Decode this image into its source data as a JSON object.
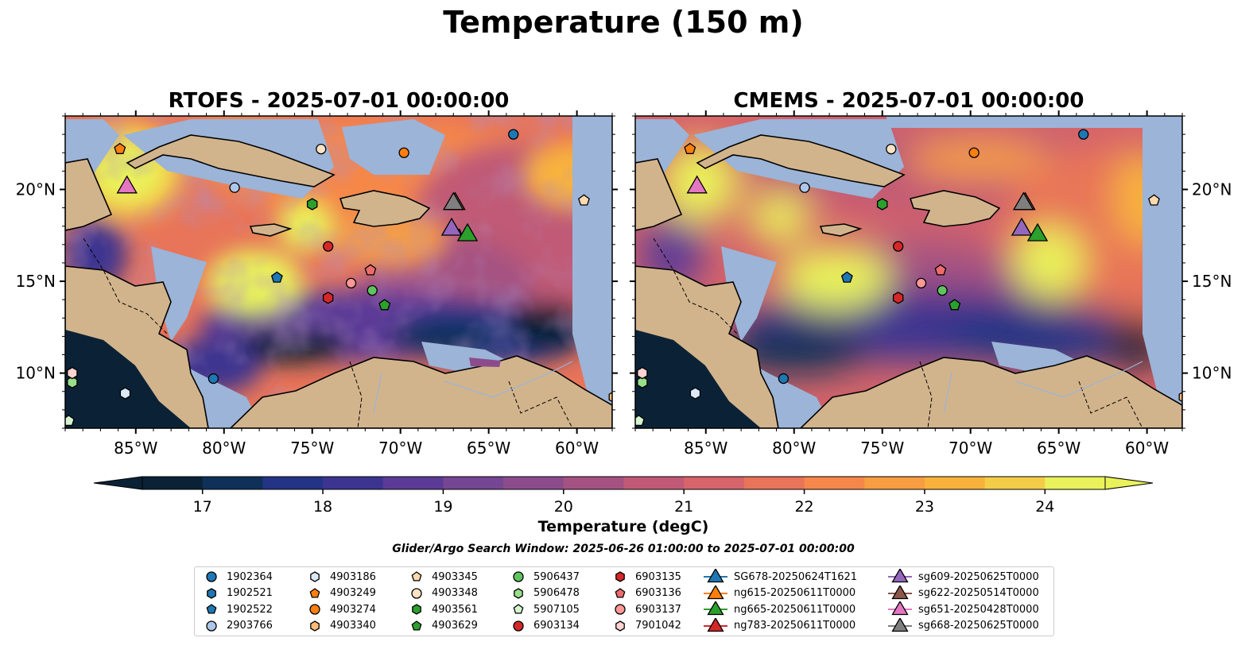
{
  "figure": {
    "title": "Temperature (150 m)",
    "colorbar_label": "Temperature (degC)",
    "search_window": "Glider/Argo Search Window: 2025-06-26 01:00:00 to 2025-07-01 00:00:00"
  },
  "panels": [
    {
      "title": "RTOFS - 2025-07-01 00:00:00"
    },
    {
      "title": "CMEMS - 2025-07-01 00:00:00"
    }
  ],
  "map": {
    "lon_range": [
      -89,
      -58
    ],
    "lat_range": [
      7,
      24
    ],
    "lon_ticks": [
      -85,
      -80,
      -75,
      -70,
      -65,
      -60
    ],
    "lat_ticks": [
      10,
      15,
      20
    ],
    "lon_tick_labels": [
      "85°W",
      "80°W",
      "75°W",
      "70°W",
      "65°W",
      "60°W"
    ],
    "lat_tick_labels": [
      "10°N",
      "15°N",
      "20°N"
    ],
    "land_color": "#d2b48c",
    "shallow_color": "#9bb4d8"
  },
  "colorbar": {
    "min": 16.5,
    "max": 24.5,
    "ticks": [
      "17",
      "18",
      "19",
      "20",
      "21",
      "22",
      "23",
      "24"
    ],
    "colors": [
      "#0b2236",
      "#0f3057",
      "#233485",
      "#3c3490",
      "#5b3b97",
      "#754693",
      "#8c4c8c",
      "#a55282",
      "#c05a76",
      "#d6646a",
      "#e87459",
      "#f5874a",
      "#f79d42",
      "#f8b23c",
      "#f4cd48",
      "#e9f25a"
    ]
  },
  "legend": {
    "items": [
      {
        "label": "1902364",
        "marker": "circle",
        "color": "#1f77b4"
      },
      {
        "label": "1902521",
        "marker": "hexagon",
        "color": "#1f77b4"
      },
      {
        "label": "1902522",
        "marker": "pentagon",
        "color": "#1f77b4"
      },
      {
        "label": "2903766",
        "marker": "circle",
        "color": "#aec7e8"
      },
      {
        "label": "4903186",
        "marker": "hexagon",
        "color": "#dbe8f5"
      },
      {
        "label": "4903249",
        "marker": "pentagon",
        "color": "#ff7f0e"
      },
      {
        "label": "4903274",
        "marker": "circle",
        "color": "#ff7f0e"
      },
      {
        "label": "4903340",
        "marker": "hexagon",
        "color": "#ffbb78"
      },
      {
        "label": "4903345",
        "marker": "pentagon",
        "color": "#ffd9b0"
      },
      {
        "label": "4903348",
        "marker": "circle",
        "color": "#ffe2c4"
      },
      {
        "label": "4903561",
        "marker": "hexagon",
        "color": "#2ca02c"
      },
      {
        "label": "4903629",
        "marker": "pentagon",
        "color": "#2ca02c"
      },
      {
        "label": "5906437",
        "marker": "circle",
        "color": "#5fc45f"
      },
      {
        "label": "5906478",
        "marker": "hexagon",
        "color": "#98df8a"
      },
      {
        "label": "5907105",
        "marker": "pentagon",
        "color": "#d5f5d0"
      },
      {
        "label": "6903134",
        "marker": "circle",
        "color": "#d62728"
      },
      {
        "label": "6903135",
        "marker": "hexagon",
        "color": "#d62728"
      },
      {
        "label": "6903136",
        "marker": "pentagon",
        "color": "#ee6b6b"
      },
      {
        "label": "6903137",
        "marker": "circle",
        "color": "#ff9896"
      },
      {
        "label": "7901042",
        "marker": "hexagon",
        "color": "#ffd4d2"
      },
      {
        "label": "SG678-20250624T1621",
        "marker": "triangle",
        "color": "#1f77b4"
      },
      {
        "label": "ng615-20250611T0000",
        "marker": "triangle",
        "color": "#ff7f0e"
      },
      {
        "label": "ng665-20250611T0000",
        "marker": "triangle",
        "color": "#2ca02c"
      },
      {
        "label": "ng783-20250611T0000",
        "marker": "triangle",
        "color": "#d62728"
      },
      {
        "label": "sg609-20250625T0000",
        "marker": "triangle",
        "color": "#9467bd"
      },
      {
        "label": "sg622-20250514T0000",
        "marker": "triangle",
        "color": "#8c564b"
      },
      {
        "label": "sg651-20250428T0000",
        "marker": "triangle",
        "color": "#e377c2"
      },
      {
        "label": "sg668-20250625T0000",
        "marker": "triangle",
        "color": "#7f7f7f"
      }
    ]
  },
  "argo_floats": [
    {
      "lon": -63.6,
      "lat": 23.0,
      "marker": "circle",
      "color": "#1f77b4"
    },
    {
      "lon": -79.4,
      "lat": 20.1,
      "marker": "circle",
      "color": "#aec7e8"
    },
    {
      "lon": -77.0,
      "lat": 15.2,
      "marker": "pentagon",
      "color": "#1f77b4"
    },
    {
      "lon": -80.6,
      "lat": 9.7,
      "marker": "circle",
      "color": "#1f77b4"
    },
    {
      "lon": -85.6,
      "lat": 8.9,
      "marker": "hexagon",
      "color": "#dbe8f5"
    },
    {
      "lon": -85.9,
      "lat": 22.2,
      "marker": "pentagon",
      "color": "#ff7f0e"
    },
    {
      "lon": -69.8,
      "lat": 22.0,
      "marker": "circle",
      "color": "#ff7f0e"
    },
    {
      "lon": -57.9,
      "lat": 8.7,
      "marker": "hexagon",
      "color": "#ffbb78"
    },
    {
      "lon": -59.6,
      "lat": 19.4,
      "marker": "pentagon",
      "color": "#ffd9b0"
    },
    {
      "lon": -74.5,
      "lat": 22.2,
      "marker": "circle",
      "color": "#ffe2c4"
    },
    {
      "lon": -75.0,
      "lat": 19.2,
      "marker": "hexagon",
      "color": "#2ca02c"
    },
    {
      "lon": -70.9,
      "lat": 13.7,
      "marker": "pentagon",
      "color": "#2ca02c"
    },
    {
      "lon": -71.6,
      "lat": 14.5,
      "marker": "circle",
      "color": "#5fc45f"
    },
    {
      "lon": -88.6,
      "lat": 9.5,
      "marker": "hexagon",
      "color": "#98df8a"
    },
    {
      "lon": -88.8,
      "lat": 7.4,
      "marker": "pentagon",
      "color": "#d5f5d0"
    },
    {
      "lon": -74.1,
      "lat": 16.9,
      "marker": "circle",
      "color": "#d62728"
    },
    {
      "lon": -74.1,
      "lat": 14.1,
      "marker": "hexagon",
      "color": "#d62728"
    },
    {
      "lon": -71.7,
      "lat": 15.6,
      "marker": "pentagon",
      "color": "#ee6b6b"
    },
    {
      "lon": -72.8,
      "lat": 14.9,
      "marker": "circle",
      "color": "#ff9896"
    },
    {
      "lon": -88.6,
      "lat": 10.0,
      "marker": "hexagon",
      "color": "#ffd4d2"
    }
  ],
  "gliders": [
    {
      "lon": -85.5,
      "lat": 20.2,
      "color": "#e377c2"
    },
    {
      "lon": -66.9,
      "lat": 19.3,
      "color": "#8c564b"
    },
    {
      "lon": -67.0,
      "lat": 19.3,
      "color": "#7f7f7f"
    },
    {
      "lon": -67.1,
      "lat": 17.9,
      "color": "#9467bd"
    },
    {
      "lon": -66.2,
      "lat": 17.6,
      "color": "#2ca02c"
    }
  ]
}
